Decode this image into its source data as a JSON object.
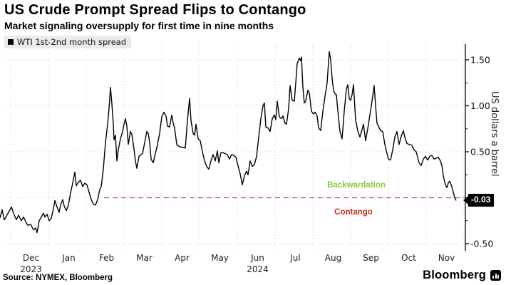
{
  "header": {
    "title": "US Crude Prompt Spread Flips to Contango",
    "subtitle": "Market signaling oversupply for first time in nine months"
  },
  "legend": {
    "series_label": "WTI 1st-2nd month spread",
    "marker_color": "#000000"
  },
  "annotations": {
    "backwardation": {
      "label": "Backwardation",
      "color": "#8cc63f"
    },
    "contango": {
      "label": "Contango",
      "color": "#cc2b20"
    },
    "last_value_badge": {
      "label": "-0.03",
      "bg": "#000000",
      "text_color": "#ffffff"
    }
  },
  "footer": {
    "source": "Source: NYMEX, Bloomberg",
    "brand": "Bloomberg"
  },
  "colors": {
    "line": "#000000",
    "zero_line_red": "#c0524d",
    "grid": "#cccccc",
    "axis": "#000000",
    "legend_bg": "#ebebeb"
  },
  "chart_data": {
    "type": "line",
    "title": "US Crude Prompt Spread Flips to Contango",
    "ylabel": "US dollars a barrel",
    "ylim": [
      -0.62,
      1.67
    ],
    "grid": true,
    "legend_position": "top-left",
    "x_tick_labels": [
      "Dec",
      "Jan",
      "Feb",
      "Mar",
      "Apr",
      "May",
      "Jun",
      "Jul",
      "Aug",
      "Sep",
      "Oct",
      "Nov"
    ],
    "x_year_labels": [
      {
        "text": "2023",
        "month_index": 0
      },
      {
        "text": "2024",
        "month_index": 6
      }
    ],
    "y_ticks": [
      {
        "label": "1.50",
        "v": 1.5
      },
      {
        "label": "1.00",
        "v": 1.0
      },
      {
        "label": "0.50",
        "v": 0.5
      },
      {
        "label": "-0.50",
        "v": -0.5
      }
    ],
    "y_minor_ticks": [
      1.25,
      0.75,
      0.25,
      -0.25
    ],
    "zero_line": {
      "value": 0,
      "style": "dashed",
      "color": "#c0524d"
    },
    "last_value": -0.03,
    "series": [
      {
        "name": "WTI 1st-2nd month spread",
        "color": "#000000",
        "points": [
          [
            0,
            -0.22
          ],
          [
            3,
            -0.13
          ],
          [
            6,
            -0.24
          ],
          [
            9,
            -0.2
          ],
          [
            12,
            -0.16
          ],
          [
            16,
            -0.1
          ],
          [
            19,
            -0.17
          ],
          [
            23,
            -0.24
          ],
          [
            26,
            -0.19
          ],
          [
            30,
            -0.25
          ],
          [
            33,
            -0.21
          ],
          [
            36,
            -0.26
          ],
          [
            39,
            -0.3
          ],
          [
            43,
            -0.29
          ],
          [
            47,
            -0.35
          ],
          [
            50,
            -0.33
          ],
          [
            52,
            -0.38
          ],
          [
            55,
            -0.25
          ],
          [
            58,
            -0.21
          ],
          [
            61,
            -0.17
          ],
          [
            63,
            -0.21
          ],
          [
            66,
            -0.18
          ],
          [
            69,
            -0.25
          ],
          [
            72,
            -0.22
          ],
          [
            75,
            -0.12
          ],
          [
            77,
            -0.03
          ],
          [
            80,
            -0.1
          ],
          [
            83,
            -0.16
          ],
          [
            85,
            -0.08
          ],
          [
            88,
            -0.02
          ],
          [
            90,
            -0.09
          ],
          [
            93,
            -0.14
          ],
          [
            96,
            -0.08
          ],
          [
            99,
            0.05
          ],
          [
            102,
            0.16
          ],
          [
            105,
            0.28
          ],
          [
            107,
            0.13
          ],
          [
            110,
            0.17
          ],
          [
            113,
            0.19
          ],
          [
            116,
            0.12
          ],
          [
            119,
            0.16
          ],
          [
            122,
            0.14
          ],
          [
            125,
            0.06
          ],
          [
            128,
            -0.02
          ],
          [
            131,
            -0.07
          ],
          [
            134,
            -0.08
          ],
          [
            137,
            -0.02
          ],
          [
            140,
            0.09
          ],
          [
            142,
            0.12
          ],
          [
            145,
            0.31
          ],
          [
            148,
            0.6
          ],
          [
            151,
            0.8
          ],
          [
            153,
            0.97
          ],
          [
            155,
            1.2
          ],
          [
            157,
            1.02
          ],
          [
            159,
            0.8
          ],
          [
            160,
            0.63
          ],
          [
            162,
            0.68
          ],
          [
            164,
            0.4
          ],
          [
            166,
            0.52
          ],
          [
            169,
            0.64
          ],
          [
            172,
            0.72
          ],
          [
            174,
            0.8
          ],
          [
            176,
            0.86
          ],
          [
            178,
            0.78
          ],
          [
            180,
            0.58
          ],
          [
            183,
            0.72
          ],
          [
            185,
            0.69
          ],
          [
            188,
            0.53
          ],
          [
            190,
            0.4
          ],
          [
            192,
            0.32
          ],
          [
            195,
            0.45
          ],
          [
            198,
            0.47
          ],
          [
            200,
            0.48
          ],
          [
            203,
            0.6
          ],
          [
            206,
            0.72
          ],
          [
            208,
            0.7
          ],
          [
            210,
            0.6
          ],
          [
            212,
            0.42
          ],
          [
            215,
            0.38
          ],
          [
            218,
            0.48
          ],
          [
            221,
            0.58
          ],
          [
            224,
            0.7
          ],
          [
            227,
            0.88
          ],
          [
            230,
            0.93
          ],
          [
            233,
            0.89
          ],
          [
            235,
            0.78
          ],
          [
            238,
            0.77
          ],
          [
            241,
            0.9
          ],
          [
            243,
            0.81
          ],
          [
            245,
            0.76
          ],
          [
            248,
            0.58
          ],
          [
            251,
            0.56
          ],
          [
            254,
            0.55
          ],
          [
            257,
            0.55
          ],
          [
            260,
            0.54
          ],
          [
            263,
            0.84
          ],
          [
            266,
            1.08
          ],
          [
            268,
            0.84
          ],
          [
            271,
            0.7
          ],
          [
            273,
            0.68
          ],
          [
            275,
            0.8
          ],
          [
            278,
            0.64
          ],
          [
            281,
            0.62
          ],
          [
            284,
            0.5
          ],
          [
            287,
            0.4
          ],
          [
            290,
            0.34
          ],
          [
            293,
            0.31
          ],
          [
            296,
            0.4
          ],
          [
            299,
            0.47
          ],
          [
            302,
            0.4
          ],
          [
            305,
            0.51
          ],
          [
            307,
            0.38
          ],
          [
            310,
            0.49
          ],
          [
            313,
            0.49
          ],
          [
            316,
            0.48
          ],
          [
            319,
            0.47
          ],
          [
            322,
            0.42
          ],
          [
            325,
            0.47
          ],
          [
            328,
            0.46
          ],
          [
            331,
            0.44
          ],
          [
            334,
            0.35
          ],
          [
            337,
            0.26
          ],
          [
            340,
            0.14
          ],
          [
            343,
            0.24
          ],
          [
            346,
            0.29
          ],
          [
            348,
            0.25
          ],
          [
            351,
            0.4
          ],
          [
            354,
            0.34
          ],
          [
            357,
            0.36
          ],
          [
            360,
            0.45
          ],
          [
            363,
            0.66
          ],
          [
            366,
            0.86
          ],
          [
            369,
            1.0
          ],
          [
            371,
            1.03
          ],
          [
            373,
            0.77
          ],
          [
            376,
            0.76
          ],
          [
            379,
            0.72
          ],
          [
            382,
            0.86
          ],
          [
            385,
            0.9
          ],
          [
            387,
            0.85
          ],
          [
            389,
            1.05
          ],
          [
            392,
            0.88
          ],
          [
            395,
            0.86
          ],
          [
            397,
            0.89
          ],
          [
            400,
            0.81
          ],
          [
            402,
            0.8
          ],
          [
            405,
            0.97
          ],
          [
            407,
            1.22
          ],
          [
            410,
            1.06
          ],
          [
            413,
            1.05
          ],
          [
            415,
            1.25
          ],
          [
            417,
            1.46
          ],
          [
            420,
            1.52
          ],
          [
            422,
            1.49
          ],
          [
            423,
            1.53
          ],
          [
            425,
            1.2
          ],
          [
            427,
            1.03
          ],
          [
            429,
            1.05
          ],
          [
            432,
            1.17
          ],
          [
            434,
            1.14
          ],
          [
            437,
            0.94
          ],
          [
            440,
            0.91
          ],
          [
            442,
            0.93
          ],
          [
            445,
            0.89
          ],
          [
            447,
            0.76
          ],
          [
            450,
            0.73
          ],
          [
            453,
            0.94
          ],
          [
            456,
            1.1
          ],
          [
            459,
            1.25
          ],
          [
            462,
            1.59
          ],
          [
            464,
            1.5
          ],
          [
            466,
            1.3
          ],
          [
            468,
            1.17
          ],
          [
            470,
            1.13
          ],
          [
            472,
            1.12
          ],
          [
            474,
            0.95
          ],
          [
            477,
            0.72
          ],
          [
            480,
            0.64
          ],
          [
            483,
            0.94
          ],
          [
            486,
            1.18
          ],
          [
            488,
            1.23
          ],
          [
            490,
            1.08
          ],
          [
            492,
            1.06
          ],
          [
            494,
            1.12
          ],
          [
            496,
            1.23
          ],
          [
            499,
            0.84
          ],
          [
            502,
            0.73
          ],
          [
            505,
            0.66
          ],
          [
            508,
            0.74
          ],
          [
            510,
            0.8
          ],
          [
            513,
            0.62
          ],
          [
            516,
            0.75
          ],
          [
            519,
            0.9
          ],
          [
            522,
            1.05
          ],
          [
            525,
            1.22
          ],
          [
            527,
            1.0
          ],
          [
            529,
            0.81
          ],
          [
            531,
            0.78
          ],
          [
            534,
            0.73
          ],
          [
            537,
            0.72
          ],
          [
            540,
            0.58
          ],
          [
            543,
            0.48
          ],
          [
            545,
            0.42
          ],
          [
            548,
            0.41
          ],
          [
            551,
            0.52
          ],
          [
            554,
            0.66
          ],
          [
            557,
            0.72
          ],
          [
            560,
            0.58
          ],
          [
            563,
            0.67
          ],
          [
            566,
            0.73
          ],
          [
            568,
            0.66
          ],
          [
            571,
            0.59
          ],
          [
            574,
            0.58
          ],
          [
            578,
            0.57
          ],
          [
            581,
            0.52
          ],
          [
            584,
            0.5
          ],
          [
            588,
            0.38
          ],
          [
            591,
            0.35
          ],
          [
            594,
            0.42
          ],
          [
            597,
            0.45
          ],
          [
            600,
            0.41
          ],
          [
            603,
            0.45
          ],
          [
            606,
            0.46
          ],
          [
            609,
            0.42
          ],
          [
            612,
            0.43
          ],
          [
            615,
            0.44
          ],
          [
            618,
            0.4
          ],
          [
            620,
            0.35
          ],
          [
            622,
            0.24
          ],
          [
            625,
            0.14
          ],
          [
            627,
            0.11
          ],
          [
            629,
            0.16
          ],
          [
            631,
            0.18
          ],
          [
            634,
            0.12
          ],
          [
            636,
            0.06
          ],
          [
            638,
            0.0
          ],
          [
            640,
            -0.03
          ]
        ]
      }
    ]
  }
}
